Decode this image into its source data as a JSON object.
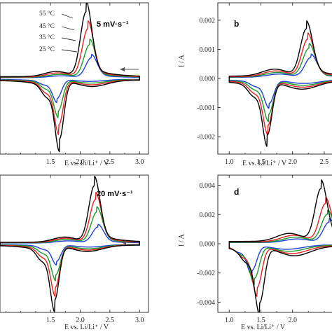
{
  "chart_data": [
    {
      "panel": "a",
      "type": "line",
      "annotation": "5 mV·s⁻¹",
      "letter": "",
      "xlabel": "E vs. Li/Li⁺ / V",
      "ylabel": "",
      "xlim": [
        0.65,
        3.15
      ],
      "ylim": [
        -0.0026,
        0.0026
      ],
      "xticks": [
        "1.5",
        "2.0",
        "2.5",
        "3.0"
      ],
      "yticks": [],
      "temperature_labels": [
        "55 °C",
        "45 °C",
        "35 °C",
        "25 °C"
      ],
      "series": [
        {
          "name": "55 °C",
          "color": "#000000",
          "peak_anodic": [
            2.1,
            0.00222
          ],
          "peak_cathodic": [
            1.65,
            -0.00199
          ],
          "hump": 0.00036,
          "sweep_sep": 6e-05
        },
        {
          "name": "45 °C",
          "color": "#e8201f",
          "peak_anodic": [
            2.13,
            0.00165
          ],
          "peak_cathodic": [
            1.64,
            -0.00153
          ],
          "hump": 0.00028,
          "sweep_sep": 5e-05
        },
        {
          "name": "35 °C",
          "color": "#1a9a2a",
          "peak_anodic": [
            2.16,
            0.00112
          ],
          "peak_cathodic": [
            1.63,
            -0.00106
          ],
          "hump": 0.0002,
          "sweep_sep": 4e-05
        },
        {
          "name": "25 °C",
          "color": "#1c3fd8",
          "peak_anodic": [
            2.19,
            0.00068
          ],
          "peak_cathodic": [
            1.61,
            -0.00065
          ],
          "hump": 0.00012,
          "sweep_sep": 3e-05
        }
      ]
    },
    {
      "panel": "b",
      "type": "line",
      "annotation": "",
      "letter": "b",
      "xlabel": "E vs. Li/Li⁺ / V",
      "ylabel": "I / A",
      "xlim": [
        0.82,
        2.7
      ],
      "ylim": [
        -0.0026,
        0.0026
      ],
      "xticks": [
        "1.0",
        "1.5",
        "2.0",
        "2.5"
      ],
      "yticks": [
        "0.002",
        "0.001",
        "0.000",
        "-0.001",
        "-0.002"
      ],
      "series": [
        {
          "name": "55 °C",
          "color": "#000000",
          "peak_anodic": [
            2.22,
            0.00162
          ],
          "peak_cathodic": [
            1.6,
            -0.00183
          ],
          "hump": 0.00048,
          "sweep_sep": 8e-05
        },
        {
          "name": "45 °C",
          "color": "#e8201f",
          "peak_anodic": [
            2.24,
            0.00128
          ],
          "peak_cathodic": [
            1.61,
            -0.00152
          ],
          "hump": 0.0004,
          "sweep_sep": 6e-05
        },
        {
          "name": "35 °C",
          "color": "#1a9a2a",
          "peak_anodic": [
            2.26,
            0.00098
          ],
          "peak_cathodic": [
            1.62,
            -0.00116
          ],
          "hump": 0.00031,
          "sweep_sep": 5e-05
        },
        {
          "name": "25 °C",
          "color": "#1c3fd8",
          "peak_anodic": [
            2.29,
            0.00068
          ],
          "peak_cathodic": [
            1.63,
            -0.0008
          ],
          "hump": 0.00022,
          "sweep_sep": 4e-05
        }
      ]
    },
    {
      "panel": "c",
      "type": "line",
      "annotation": "20 mV·s⁻¹",
      "letter": "",
      "xlabel": "E vs. Li/Li⁺ / V",
      "ylabel": "",
      "xlim": [
        0.65,
        3.15
      ],
      "ylim": [
        -0.0056,
        0.0056
      ],
      "xticks": [
        "1.5",
        "2.0",
        "2.5",
        "3.0"
      ],
      "yticks": [],
      "series": [
        {
          "name": "55 °C",
          "color": "#000000",
          "peak_anodic": [
            2.24,
            0.0046
          ],
          "peak_cathodic": [
            1.57,
            -0.0044
          ],
          "hump": 0.00085,
          "sweep_sep": 0.00012
        },
        {
          "name": "45 °C",
          "color": "#e8201f",
          "peak_anodic": [
            2.26,
            0.0035
          ],
          "peak_cathodic": [
            1.58,
            -0.0034
          ],
          "hump": 0.0007,
          "sweep_sep": 0.0001
        },
        {
          "name": "35 °C",
          "color": "#1a9a2a",
          "peak_anodic": [
            2.28,
            0.0025
          ],
          "peak_cathodic": [
            1.59,
            -0.0024
          ],
          "hump": 0.00055,
          "sweep_sep": 8e-05
        },
        {
          "name": "25 °C",
          "color": "#1c3fd8",
          "peak_anodic": [
            2.3,
            0.0013
          ],
          "peak_cathodic": [
            1.6,
            -0.00135
          ],
          "hump": 0.00035,
          "sweep_sep": 6e-05
        }
      ]
    },
    {
      "panel": "d",
      "type": "line",
      "annotation": "",
      "letter": "d",
      "xlabel": "E vs. Li/Li⁺ / V",
      "ylabel": "I / A",
      "xlim": [
        0.82,
        2.7
      ],
      "ylim": [
        -0.0047,
        0.0047
      ],
      "xticks": [
        "1.0",
        "1.5",
        "2.0"
      ],
      "yticks": [
        "0.004",
        "0.002",
        "0.000",
        "-0.002",
        "-0.004"
      ],
      "series": [
        {
          "name": "55 °C",
          "color": "#000000",
          "peak_anodic": [
            2.45,
            0.0036
          ],
          "peak_cathodic": [
            1.48,
            -0.0038
          ],
          "hump": 0.0011,
          "sweep_sep": 0.00016
        },
        {
          "name": "45 °C",
          "color": "#e8201f",
          "peak_anodic": [
            2.52,
            0.0026
          ],
          "peak_cathodic": [
            1.44,
            -0.0028
          ],
          "hump": 0.0009,
          "sweep_sep": 0.00013
        },
        {
          "name": "35 °C",
          "color": "#1a9a2a",
          "peak_anodic": [
            2.55,
            0.0019
          ],
          "peak_cathodic": [
            1.4,
            -0.0022
          ],
          "hump": 0.0007,
          "sweep_sep": 0.0001
        },
        {
          "name": "25 °C",
          "color": "#1c3fd8",
          "peak_anodic": [
            2.58,
            0.0014
          ],
          "peak_cathodic": [
            1.36,
            -0.0017
          ],
          "hump": 0.0005,
          "sweep_sep": 8e-05
        }
      ]
    }
  ],
  "sweep_limits": {
    "left": [
      0.65,
      1.0
    ],
    "right": 3.0
  }
}
